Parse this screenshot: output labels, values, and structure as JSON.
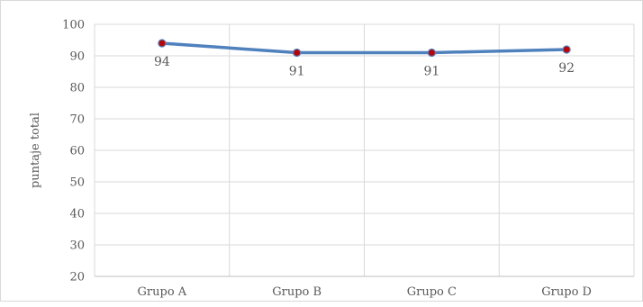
{
  "chart_data": {
    "type": "line",
    "title": "",
    "xlabel": "",
    "ylabel": "puntaje total",
    "categories": [
      "Grupo A",
      "Grupo B",
      "Grupo C",
      "Grupo D"
    ],
    "series": [
      {
        "values": [
          94,
          91,
          91,
          92
        ],
        "color": "#4f81bd",
        "marker_color": "#c00000"
      }
    ],
    "data_labels": [
      "94",
      "91",
      "91",
      "92"
    ],
    "y_ticks": [
      "20",
      "30",
      "40",
      "50",
      "60",
      "70",
      "80",
      "90",
      "100"
    ],
    "ylim": [
      20,
      100
    ],
    "grid": true,
    "legend": "none"
  }
}
